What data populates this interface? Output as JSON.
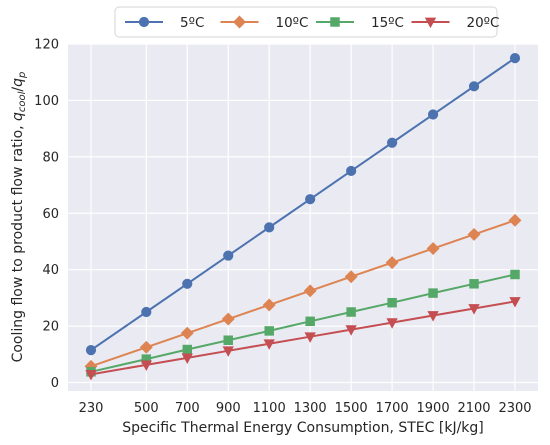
{
  "chart_data": {
    "type": "line",
    "title": "",
    "xlabel": "Specific Thermal Energy Consumption, STEC [kJ/kg]",
    "ylabel_prefix": "Cooling flow to product flow ratio, ",
    "ylabel_math": "q_cool/q_p",
    "x": [
      230,
      500,
      700,
      900,
      1100,
      1300,
      1500,
      1700,
      1900,
      2100,
      2300
    ],
    "x_tick_labels": [
      "230",
      "500",
      "700",
      "900",
      "1100",
      "1300",
      "1500",
      "1700",
      "1900",
      "2100",
      "2300"
    ],
    "ylim": [
      -3,
      120
    ],
    "y_ticks": [
      0,
      20,
      40,
      60,
      80,
      100,
      120
    ],
    "grid": true,
    "legend_position": "top-center",
    "series": [
      {
        "name": "5ºC",
        "color": "#4c72b0",
        "marker": "circle",
        "values": [
          11.5,
          25.0,
          35.0,
          45.0,
          55.0,
          65.0,
          75.0,
          85.0,
          95.0,
          105.0,
          115.0
        ]
      },
      {
        "name": "10ºC",
        "color": "#dd8452",
        "marker": "diamond",
        "values": [
          5.75,
          12.5,
          17.5,
          22.5,
          27.5,
          32.5,
          37.5,
          42.5,
          47.5,
          52.5,
          57.5
        ]
      },
      {
        "name": "15ºC",
        "color": "#55a868",
        "marker": "square",
        "values": [
          3.8,
          8.3,
          11.7,
          15.0,
          18.3,
          21.7,
          25.0,
          28.3,
          31.7,
          35.0,
          38.3
        ]
      },
      {
        "name": "20ºC",
        "color": "#c44e52",
        "marker": "triangle-down",
        "values": [
          2.9,
          6.25,
          8.75,
          11.25,
          13.75,
          16.25,
          18.75,
          21.25,
          23.75,
          26.25,
          28.75
        ]
      }
    ]
  }
}
